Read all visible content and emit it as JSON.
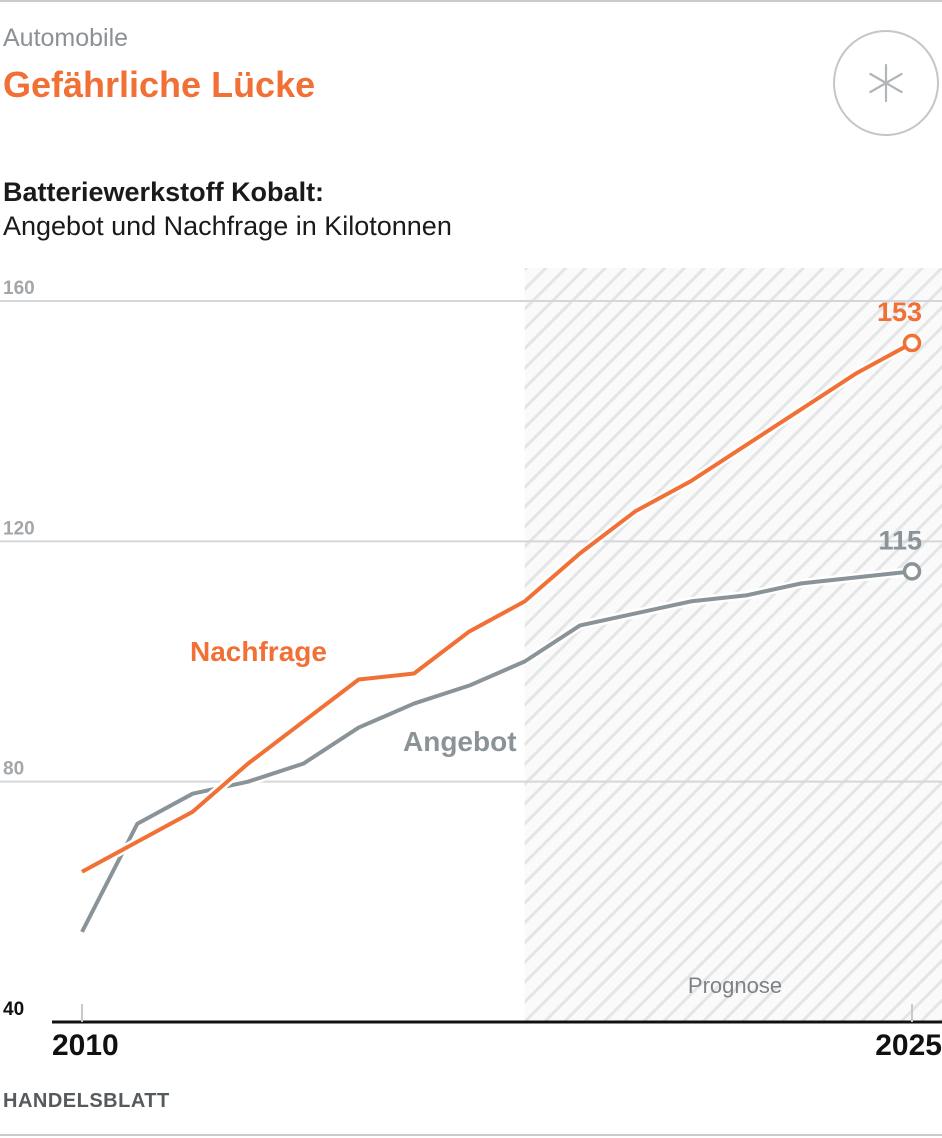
{
  "header": {
    "kicker": "Automobile",
    "headline": "Gefährliche Lücke",
    "badge_icon": "asterisk-icon"
  },
  "subtitle": {
    "bold": "Batteriewerkstoff Kobalt:",
    "regular": "Angebot und Nachfrage in Kilotonnen"
  },
  "source": "HANDELSBLATT",
  "colors": {
    "nachfrage": "#f07035",
    "angebot": "#8a9398",
    "grid": "#d4d7d9",
    "tick_label": "#a3a7aa",
    "forecast_hatch": "#e3e5e6"
  },
  "chart_data": {
    "type": "line",
    "x": [
      2010,
      2011,
      2012,
      2013,
      2014,
      2015,
      2016,
      2017,
      2018,
      2019,
      2020,
      2021,
      2022,
      2023,
      2024,
      2025
    ],
    "x_tick_labels": [
      "2010",
      "2025"
    ],
    "ylim": [
      40,
      160
    ],
    "y_ticks": [
      40,
      80,
      120,
      160
    ],
    "grid": true,
    "forecast_region": {
      "from": 2018,
      "to": 2025,
      "label": "Prognose"
    },
    "series": [
      {
        "name": "Nachfrage",
        "color": "#f07035",
        "values": [
          65,
          70,
          75,
          83,
          90,
          97,
          98,
          105,
          110,
          118,
          125,
          130,
          136,
          142,
          148,
          153
        ],
        "end_label": "153"
      },
      {
        "name": "Angebot",
        "color": "#8a9398",
        "values": [
          55,
          73,
          78,
          80,
          83,
          89,
          93,
          96,
          100,
          106,
          108,
          110,
          111,
          113,
          114,
          115
        ],
        "end_label": "115"
      }
    ]
  }
}
